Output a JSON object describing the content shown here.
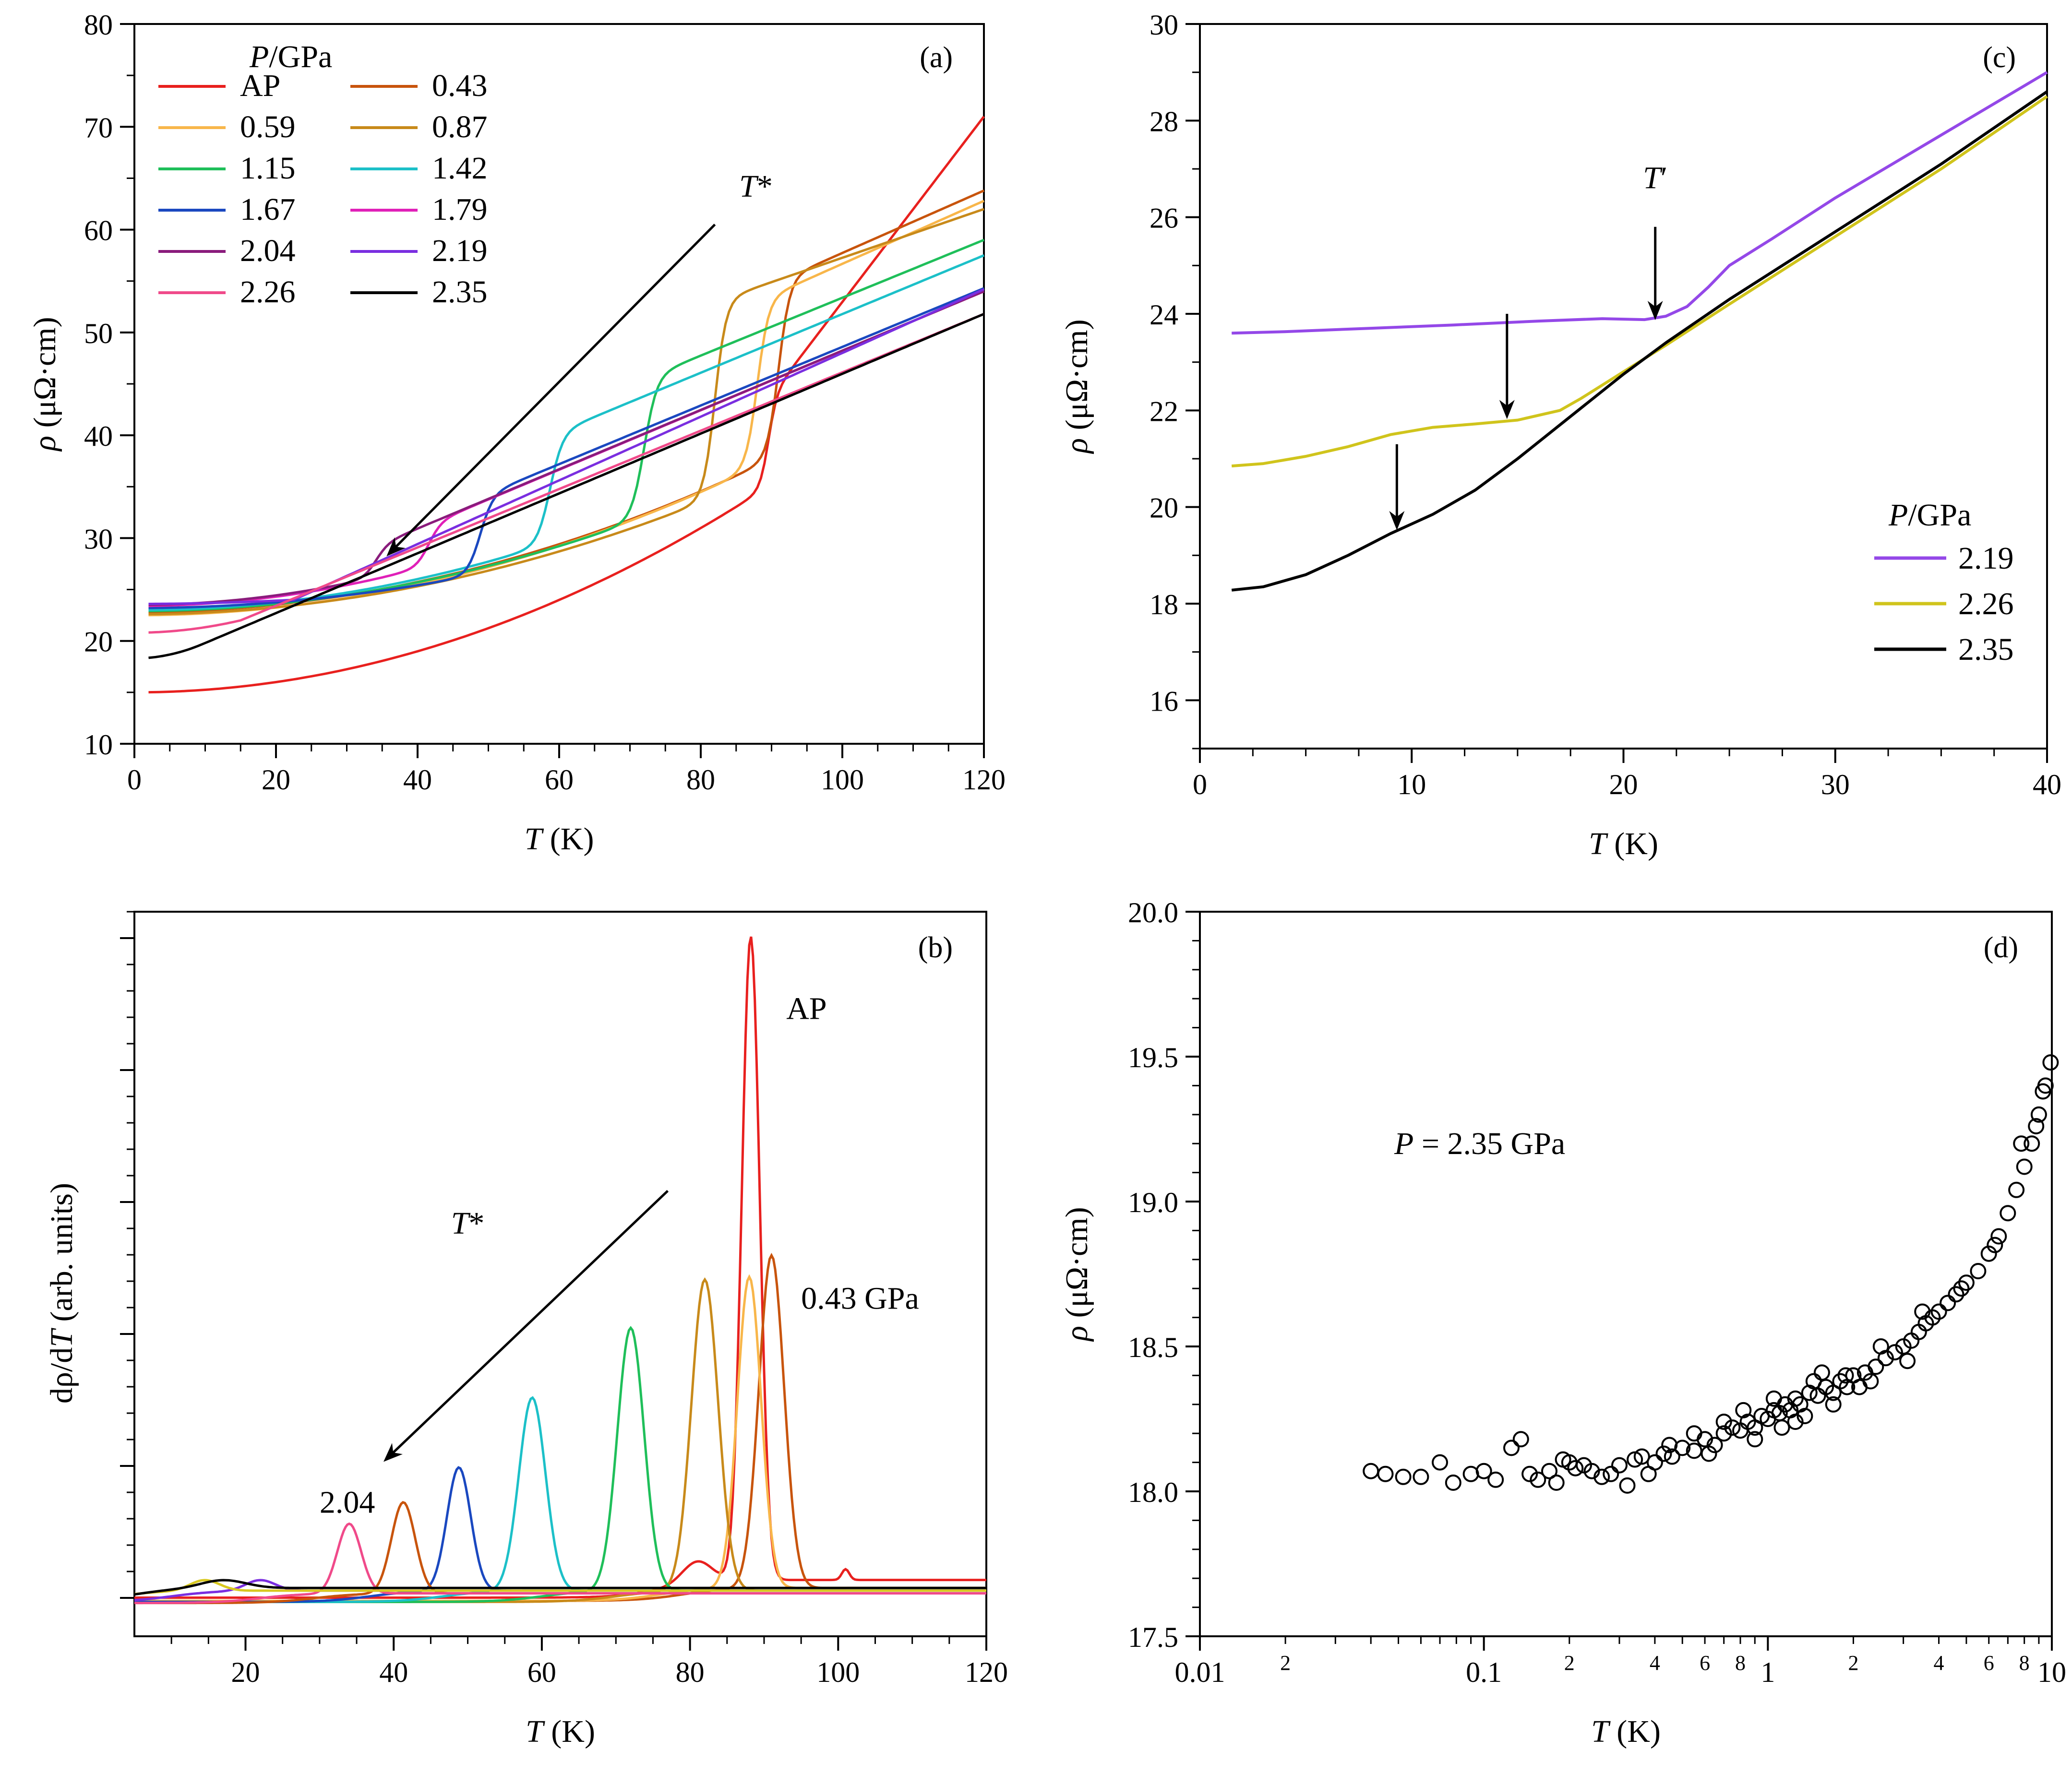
{
  "figure": {
    "domain": "Chart"
  },
  "chart_data": [
    {
      "id": "a",
      "type": "line",
      "panel_label": "(a)",
      "xlabel_var": "T",
      "xlabel_unit": " (K)",
      "ylabel_var": "ρ",
      "ylabel_unit": " (μΩ·cm)",
      "xlim": [
        0,
        120
      ],
      "ylim": [
        10,
        80
      ],
      "xticks": [
        0,
        20,
        40,
        60,
        80,
        100,
        120
      ],
      "yticks": [
        10,
        20,
        30,
        40,
        50,
        60,
        70,
        80
      ],
      "legend_title_var": "P",
      "legend_title_unit": "/GPa",
      "annotation_var": "T",
      "annotation_mark": "*",
      "arrow": {
        "from": [
          82,
          60.5
        ],
        "to": [
          36,
          28.5
        ]
      },
      "series": [
        {
          "name": "AP",
          "color": "#e8201e",
          "T0": 15.0,
          "Tc": 89.5,
          "jump": 8.5,
          "rho_at_Tc": 35.0,
          "rho120": 71.0,
          "width": 0.6
        },
        {
          "name": "0.43",
          "color": "#c8540c",
          "T0": 22.8,
          "Tc": 91.0,
          "jump": 17.0,
          "rho_at_Tc": 38.0,
          "rho120": 63.8,
          "width": 0.8
        },
        {
          "name": "0.59",
          "color": "#f8b64a",
          "T0": 22.5,
          "Tc": 88.0,
          "jump": 16.0,
          "rho_at_Tc": 37.0,
          "rho120": 62.8,
          "width": 0.8
        },
        {
          "name": "0.87",
          "color": "#c88a1a",
          "T0": 22.6,
          "Tc": 82.0,
          "jump": 19.0,
          "rho_at_Tc": 34.0,
          "rho120": 62.0,
          "width": 0.8
        },
        {
          "name": "1.15",
          "color": "#1fbf5a",
          "T0": 22.9,
          "Tc": 72.0,
          "jump": 13.5,
          "rho_at_Tc": 32.0,
          "rho120": 59.0,
          "width": 0.9
        },
        {
          "name": "1.42",
          "color": "#1cc0c8",
          "T0": 23.0,
          "Tc": 58.7,
          "jump": 10.5,
          "rho_at_Tc": 29.5,
          "rho120": 57.5,
          "width": 0.9
        },
        {
          "name": "1.67",
          "color": "#1a48c0",
          "T0": 23.2,
          "Tc": 48.8,
          "jump": 7.5,
          "rho_at_Tc": 26.5,
          "rho120": 54.3,
          "width": 0.9
        },
        {
          "name": "1.79",
          "color": "#e020b8",
          "T0": 23.4,
          "Tc": 41.5,
          "jump": 4.0,
          "rho_at_Tc": 27.3,
          "rho120": 54.0,
          "width": 0.9
        },
        {
          "name": "2.04",
          "color": "#8a1c7c",
          "T0": 23.5,
          "Tc": 34.0,
          "jump": 3.0,
          "rho_at_Tc": 26.2,
          "rho120": 54.0,
          "width": 0.9
        },
        {
          "name": "2.19",
          "color": "#7a2ee0",
          "T0": 23.6,
          "Tc": 22.5,
          "jump": 0.0,
          "rho_at_Tc": 24.0,
          "rho120": 54.2,
          "width": 0.9
        },
        {
          "name": "2.26",
          "color": "#f04a8a",
          "T0": 20.8,
          "Tc": 15.0,
          "jump": 0.0,
          "rho_at_Tc": 22.0,
          "rho120": 51.8,
          "width": 0.9
        },
        {
          "name": "2.35",
          "color": "#000000",
          "T0": 18.3,
          "Tc": 10.0,
          "jump": 0.0,
          "rho_at_Tc": 19.8,
          "rho120": 51.8,
          "width": 0.9
        }
      ]
    },
    {
      "id": "b",
      "type": "line",
      "panel_label": "(b)",
      "xlabel_var": "T",
      "xlabel_unit": " (K)",
      "ylabel_text": "dρ/d",
      "ylabel_var": "T",
      "ylabel_unit": " (arb. units)",
      "xlim": [
        5,
        120
      ],
      "ylim": [
        -0.05,
        1.3
      ],
      "xticks": [
        20,
        40,
        60,
        80,
        100,
        120
      ],
      "annotation_var": "T",
      "annotation_mark": "*",
      "arrow": {
        "from": [
          77,
          0.78
        ],
        "to": [
          39,
          0.28
        ]
      },
      "labels": [
        {
          "text": "AP",
          "x": 93,
          "y": 1.1
        },
        {
          "text": "0.43 GPa",
          "x": 95,
          "y": 0.56
        },
        {
          "text": "2.04",
          "x": 30,
          "y": 0.18
        }
      ],
      "peaks": [
        {
          "name": "AP",
          "color": "#e8201e",
          "Tc": 88.2,
          "height": 1.2,
          "sigma": 1.2,
          "base": 0.055,
          "bump": {
            "x": 81,
            "h": 0.04
          }
        },
        {
          "name": "0.43",
          "color": "#c8540c",
          "Tc": 91.0,
          "height": 0.62,
          "sigma": 1.7,
          "base": 0.04
        },
        {
          "name": "0.59",
          "color": "#f8b64a",
          "Tc": 88.0,
          "height": 0.58,
          "sigma": 1.6,
          "base": 0.04
        },
        {
          "name": "0.87",
          "color": "#c88a1a",
          "Tc": 82.0,
          "height": 0.58,
          "sigma": 1.8,
          "base": 0.035
        },
        {
          "name": "1.15",
          "color": "#1fbf5a",
          "Tc": 72.0,
          "height": 0.49,
          "sigma": 1.8,
          "base": 0.035
        },
        {
          "name": "1.42",
          "color": "#1cc0c8",
          "Tc": 58.7,
          "height": 0.36,
          "sigma": 1.8,
          "base": 0.035
        },
        {
          "name": "1.67",
          "color": "#1a48c0",
          "Tc": 48.8,
          "height": 0.23,
          "sigma": 1.6,
          "base": 0.035
        },
        {
          "name": "1.79",
          "color": "#c8540c",
          "Tc": 41.3,
          "height": 0.17,
          "sigma": 1.6,
          "base": 0.03
        },
        {
          "name": "2.04",
          "color": "#f04a8a",
          "Tc": 34.0,
          "height": 0.13,
          "sigma": 1.6,
          "base": 0.03
        },
        {
          "name": "2.19",
          "color": "#7a2ee0",
          "Tc": 22.0,
          "height": 0.02,
          "sigma": 2.0,
          "base": 0.035
        },
        {
          "name": "2.26",
          "color": "#d8c820",
          "Tc": 14.5,
          "height": 0.02,
          "sigma": 2.0,
          "base": 0.035
        },
        {
          "name": "2.35",
          "color": "#000000",
          "Tc": 17.0,
          "height": 0.015,
          "sigma": 3.0,
          "base": 0.04
        }
      ]
    },
    {
      "id": "c",
      "type": "line",
      "panel_label": "(c)",
      "xlabel_var": "T",
      "xlabel_unit": " (K)",
      "ylabel_var": "ρ",
      "ylabel_unit": " (μΩ·cm)",
      "xlim": [
        0,
        40
      ],
      "ylim": [
        15,
        30
      ],
      "xticks": [
        0,
        10,
        20,
        30,
        40
      ],
      "yticks": [
        16,
        18,
        20,
        22,
        24,
        26,
        28,
        30
      ],
      "legend_title_var": "P",
      "legend_title_unit": "/GPa",
      "annotation_var": "T",
      "annotation_mark": "′",
      "series": [
        {
          "name": "2.19",
          "color": "#9448e8",
          "x": [
            1.5,
            4,
            8,
            12,
            16,
            19,
            21,
            22,
            23,
            24,
            25,
            27,
            30,
            35,
            40
          ],
          "y": [
            23.6,
            23.63,
            23.7,
            23.77,
            23.85,
            23.9,
            23.88,
            23.95,
            24.15,
            24.55,
            25.0,
            25.55,
            26.4,
            27.7,
            29.0
          ]
        },
        {
          "name": "2.26",
          "color": "#d0c41c",
          "x": [
            1.5,
            3,
            5,
            7,
            9,
            11,
            13,
            15,
            17,
            18,
            20,
            22,
            25,
            30,
            35,
            40
          ],
          "y": [
            20.85,
            20.9,
            21.05,
            21.25,
            21.5,
            21.65,
            21.72,
            21.8,
            22.0,
            22.25,
            22.8,
            23.35,
            24.2,
            25.6,
            27.0,
            28.5
          ]
        },
        {
          "name": "2.35",
          "color": "#000000",
          "x": [
            1.5,
            3,
            5,
            7,
            9,
            11,
            13,
            15,
            17,
            20,
            22,
            25,
            30,
            35,
            40
          ],
          "y": [
            18.28,
            18.35,
            18.6,
            19.0,
            19.45,
            19.85,
            20.35,
            21.0,
            21.7,
            22.75,
            23.4,
            24.3,
            25.7,
            27.1,
            28.6
          ]
        }
      ],
      "arrows": [
        {
          "x": 21.5,
          "y_from": 25.8,
          "y_to": 23.95
        },
        {
          "x": 14.5,
          "y_from": 24.0,
          "y_to": 21.9
        },
        {
          "x": 9.3,
          "y_from": 21.3,
          "y_to": 19.6
        }
      ]
    },
    {
      "id": "d",
      "type": "scatter",
      "panel_label": "(d)",
      "xlabel_var": "T",
      "xlabel_unit": " (K)",
      "ylabel_var": "ρ",
      "ylabel_unit": " (μΩ·cm)",
      "xscale": "log",
      "xlim": [
        0.01,
        10
      ],
      "ylim": [
        17.5,
        20.0
      ],
      "xticks": [
        0.01,
        0.1,
        1,
        10
      ],
      "xtick_labels": [
        "0.01",
        "0.1",
        "1",
        "10"
      ],
      "minor_labels": [
        "2",
        "4",
        "6",
        "8"
      ],
      "yticks": [
        17.5,
        18.0,
        18.5,
        19.0,
        19.5,
        20.0
      ],
      "ytick_labels": [
        "17.5",
        "18.0",
        "18.5",
        "19.0",
        "19.5",
        "20.0"
      ],
      "annotation_var": "P",
      "annotation_text": " = 2.35 GPa",
      "points": [
        [
          0.04,
          18.07
        ],
        [
          0.045,
          18.06
        ],
        [
          0.052,
          18.05
        ],
        [
          0.06,
          18.05
        ],
        [
          0.07,
          18.1
        ],
        [
          0.078,
          18.03
        ],
        [
          0.09,
          18.06
        ],
        [
          0.1,
          18.07
        ],
        [
          0.11,
          18.04
        ],
        [
          0.125,
          18.15
        ],
        [
          0.135,
          18.18
        ],
        [
          0.145,
          18.06
        ],
        [
          0.155,
          18.04
        ],
        [
          0.17,
          18.07
        ],
        [
          0.18,
          18.03
        ],
        [
          0.19,
          18.11
        ],
        [
          0.2,
          18.1
        ],
        [
          0.21,
          18.08
        ],
        [
          0.225,
          18.09
        ],
        [
          0.24,
          18.07
        ],
        [
          0.26,
          18.05
        ],
        [
          0.28,
          18.06
        ],
        [
          0.3,
          18.09
        ],
        [
          0.32,
          18.02
        ],
        [
          0.34,
          18.11
        ],
        [
          0.36,
          18.12
        ],
        [
          0.38,
          18.06
        ],
        [
          0.4,
          18.1
        ],
        [
          0.43,
          18.13
        ],
        [
          0.46,
          18.12
        ],
        [
          0.5,
          18.15
        ],
        [
          0.55,
          18.14
        ],
        [
          0.6,
          18.18
        ],
        [
          0.65,
          18.16
        ],
        [
          0.7,
          18.2
        ],
        [
          0.75,
          18.22
        ],
        [
          0.8,
          18.21
        ],
        [
          0.85,
          18.24
        ],
        [
          0.9,
          18.22
        ],
        [
          0.95,
          18.26
        ],
        [
          1.0,
          18.25
        ],
        [
          1.05,
          18.28
        ],
        [
          1.1,
          18.27
        ],
        [
          1.15,
          18.3
        ],
        [
          1.2,
          18.28
        ],
        [
          1.25,
          18.32
        ],
        [
          1.3,
          18.3
        ],
        [
          1.4,
          18.34
        ],
        [
          1.5,
          18.33
        ],
        [
          1.6,
          18.36
        ],
        [
          1.7,
          18.34
        ],
        [
          1.8,
          18.38
        ],
        [
          1.9,
          18.36
        ],
        [
          2.0,
          18.4
        ],
        [
          2.2,
          18.41
        ],
        [
          2.4,
          18.43
        ],
        [
          2.6,
          18.46
        ],
        [
          2.8,
          18.48
        ],
        [
          3.0,
          18.5
        ],
        [
          3.2,
          18.52
        ],
        [
          3.4,
          18.55
        ],
        [
          3.6,
          18.58
        ],
        [
          3.8,
          18.6
        ],
        [
          4.0,
          18.62
        ],
        [
          4.3,
          18.65
        ],
        [
          4.6,
          18.68
        ],
        [
          5.0,
          18.72
        ],
        [
          5.5,
          18.76
        ],
        [
          6.0,
          18.82
        ],
        [
          6.5,
          18.88
        ],
        [
          7.0,
          18.96
        ],
        [
          7.5,
          19.04
        ],
        [
          8.0,
          19.12
        ],
        [
          8.5,
          19.2
        ],
        [
          9.0,
          19.3
        ],
        [
          9.5,
          19.4
        ],
        [
          9.9,
          19.48
        ],
        [
          0.9,
          18.18
        ],
        [
          1.05,
          18.32
        ],
        [
          1.25,
          18.24
        ],
        [
          1.45,
          18.38
        ],
        [
          1.7,
          18.3
        ],
        [
          2.1,
          18.36
        ],
        [
          2.5,
          18.5
        ],
        [
          0.7,
          18.24
        ],
        [
          0.55,
          18.2
        ],
        [
          0.45,
          18.16
        ],
        [
          1.35,
          18.26
        ],
        [
          1.55,
          18.41
        ],
        [
          3.1,
          18.45
        ],
        [
          3.5,
          18.62
        ],
        [
          4.8,
          18.7
        ],
        [
          6.3,
          18.85
        ],
        [
          7.8,
          19.2
        ],
        [
          8.8,
          19.26
        ],
        [
          9.3,
          19.38
        ],
        [
          0.62,
          18.13
        ],
        [
          0.82,
          18.28
        ],
        [
          1.12,
          18.22
        ],
        [
          1.88,
          18.4
        ],
        [
          2.3,
          18.38
        ]
      ]
    }
  ]
}
